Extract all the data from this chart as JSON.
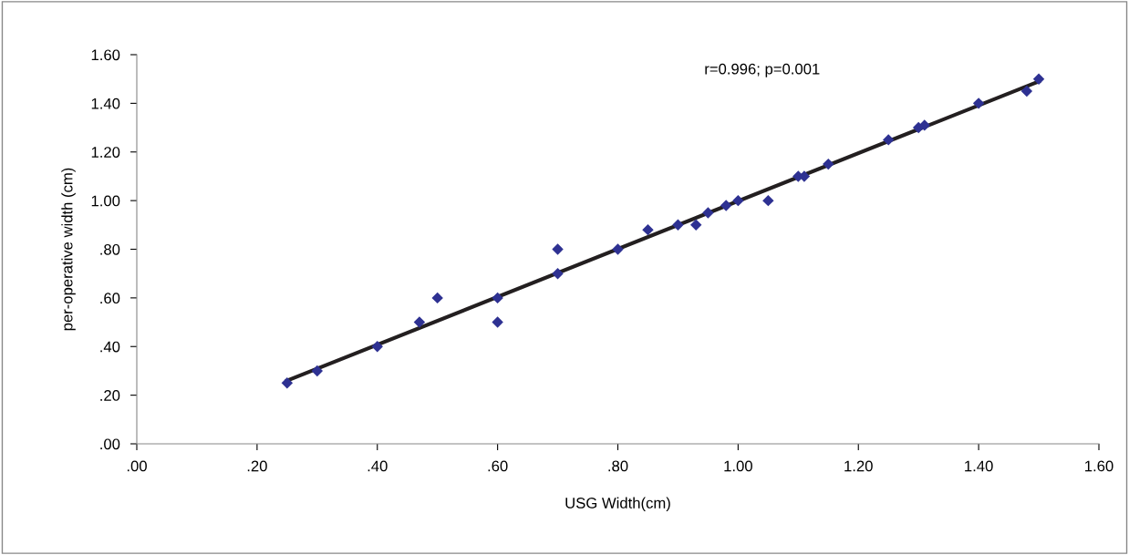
{
  "chart_data": {
    "type": "scatter",
    "xlabel": "USG Width(cm)",
    "ylabel": "per-operative width (cm)",
    "annotations": [
      "r=0.996; p=0.001"
    ],
    "series": [
      {
        "color": "#2e3192",
        "marker": "diamond",
        "x": [
          0.25,
          0.3,
          0.4,
          0.47,
          0.5,
          0.6,
          0.6,
          0.7,
          0.7,
          0.8,
          0.85,
          0.9,
          0.93,
          0.95,
          0.98,
          1.0,
          1.05,
          1.1,
          1.11,
          1.15,
          1.25,
          1.3,
          1.31,
          1.4,
          1.48,
          1.5
        ],
        "values": [
          0.25,
          0.3,
          0.4,
          0.5,
          0.6,
          0.6,
          0.5,
          0.8,
          0.7,
          0.8,
          0.88,
          0.9,
          0.9,
          0.95,
          0.98,
          1.0,
          1.0,
          1.1,
          1.1,
          1.15,
          1.25,
          1.3,
          1.31,
          1.4,
          1.45,
          1.5
        ]
      },
      {
        "type": "line",
        "color": "#231f20",
        "x": [
          0.25,
          1.5
        ],
        "values": [
          0.26,
          1.49
        ]
      }
    ],
    "xlim": [
      0,
      1.6
    ],
    "ylim": [
      0,
      1.6
    ],
    "xticks": [
      {
        "value": 0,
        "label": ".00"
      },
      {
        "value": 0.2,
        "label": ".20"
      },
      {
        "value": 0.4,
        "label": ".40"
      },
      {
        "value": 0.6,
        "label": ".60"
      },
      {
        "value": 0.8,
        "label": ".80"
      },
      {
        "value": 1.0,
        "label": "1.00"
      },
      {
        "value": 1.2,
        "label": "1.20"
      },
      {
        "value": 1.4,
        "label": "1.40"
      },
      {
        "value": 1.6,
        "label": "1.60"
      }
    ],
    "yticks": [
      {
        "value": 0,
        "label": ".00"
      },
      {
        "value": 0.2,
        "label": ".20"
      },
      {
        "value": 0.4,
        "label": ".40"
      },
      {
        "value": 0.6,
        "label": ".60"
      },
      {
        "value": 0.8,
        "label": ".80"
      },
      {
        "value": 1.0,
        "label": "1.00"
      },
      {
        "value": 1.2,
        "label": "1.20"
      },
      {
        "value": 1.4,
        "label": "1.40"
      },
      {
        "value": 1.6,
        "label": "1.60"
      }
    ],
    "grid": false,
    "legend": false
  }
}
